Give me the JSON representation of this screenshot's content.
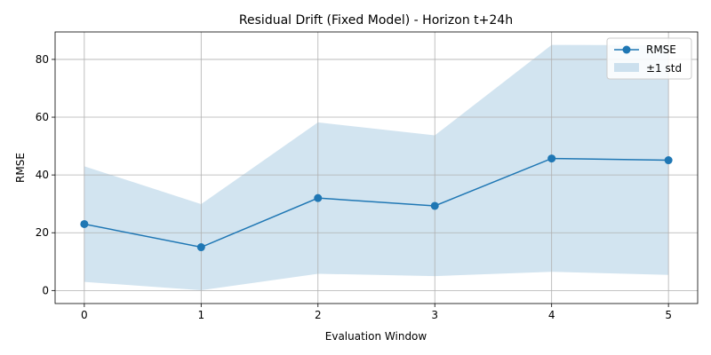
{
  "chart_data": {
    "type": "line",
    "title": "Residual Drift (Fixed Model) - Horizon t+24h",
    "xlabel": "Evaluation Window",
    "ylabel": "RMSE",
    "x": [
      0,
      1,
      2,
      3,
      4,
      5
    ],
    "x_ticks": [
      "0",
      "1",
      "2",
      "3",
      "4",
      "5"
    ],
    "y_ticks": [
      "0",
      "20",
      "40",
      "60",
      "80"
    ],
    "xlim": [
      -0.25,
      5.25
    ],
    "ylim": [
      -4.5,
      89.5
    ],
    "grid": true,
    "legend_position": "top-right",
    "series": [
      {
        "name": "RMSE",
        "kind": "line",
        "marker": "circle",
        "color": "#1f77b4",
        "values": [
          23.0,
          15.0,
          32.0,
          29.3,
          45.7,
          45.1
        ]
      },
      {
        "name": "±1 std",
        "kind": "band",
        "color": "#1f77b4",
        "lower": [
          3.0,
          0.1,
          5.8,
          5.0,
          6.5,
          5.4
        ],
        "upper": [
          43.0,
          29.9,
          58.2,
          53.7,
          85.0,
          84.9
        ]
      }
    ]
  }
}
